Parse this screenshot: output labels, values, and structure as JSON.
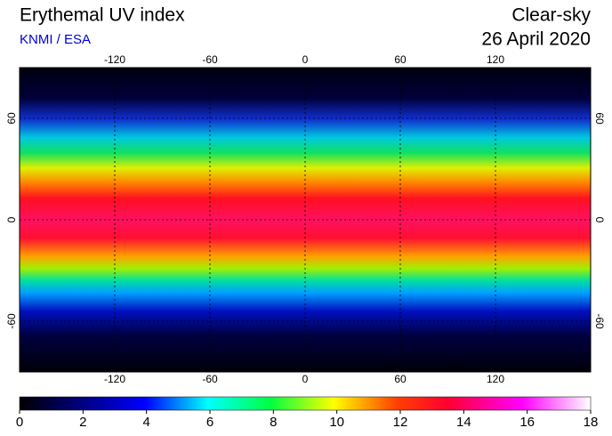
{
  "header": {
    "title": "Erythemal UV index",
    "credit": "KNMI / ESA",
    "condition": "Clear-sky",
    "date": "26 April 2020"
  },
  "map": {
    "lonlim": [
      -180,
      180
    ],
    "latlim": [
      -90,
      90
    ],
    "lon_ticks": [
      -120,
      -60,
      0,
      60,
      120
    ],
    "lat_ticks": [
      60,
      0,
      -60
    ]
  },
  "colorbar": {
    "lim": [
      0,
      18
    ],
    "ticks": [
      0,
      2,
      4,
      6,
      8,
      10,
      12,
      14,
      16,
      18
    ]
  }
}
